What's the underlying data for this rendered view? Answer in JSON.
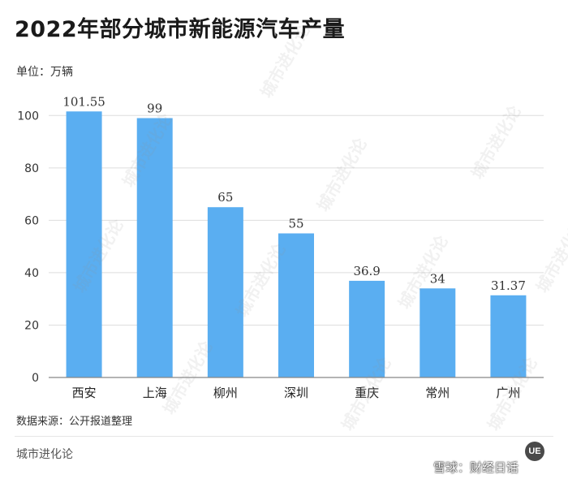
{
  "header": {
    "title": "2022年部分城市新能源汽车产量",
    "unit": "单位：万辆"
  },
  "footer": {
    "source": "数据来源：公开报道整理",
    "brand": "城市进化论",
    "badge": "UE",
    "platform_watermark": "雪球：财经日话",
    "platform_icon": "snowball-icon"
  },
  "watermark_text": "城市进化论",
  "colors": {
    "bar": "#5aaef1",
    "grid": "#dddddd",
    "axis": "#888888"
  },
  "chart_data": {
    "type": "bar",
    "title": "2022年部分城市新能源汽车产量",
    "xlabel": "",
    "ylabel": "",
    "categories": [
      "西安",
      "上海",
      "柳州",
      "深圳",
      "重庆",
      "常州",
      "广州"
    ],
    "values": [
      101.55,
      99,
      65,
      55,
      36.9,
      34,
      31.37
    ],
    "value_labels": [
      "101.55",
      "99",
      "65",
      "55",
      "36.9",
      "34",
      "31.37"
    ],
    "ylim": [
      0,
      110
    ],
    "yticks": [
      0,
      20,
      40,
      60,
      80,
      100
    ],
    "grid": true,
    "legend": "none"
  }
}
